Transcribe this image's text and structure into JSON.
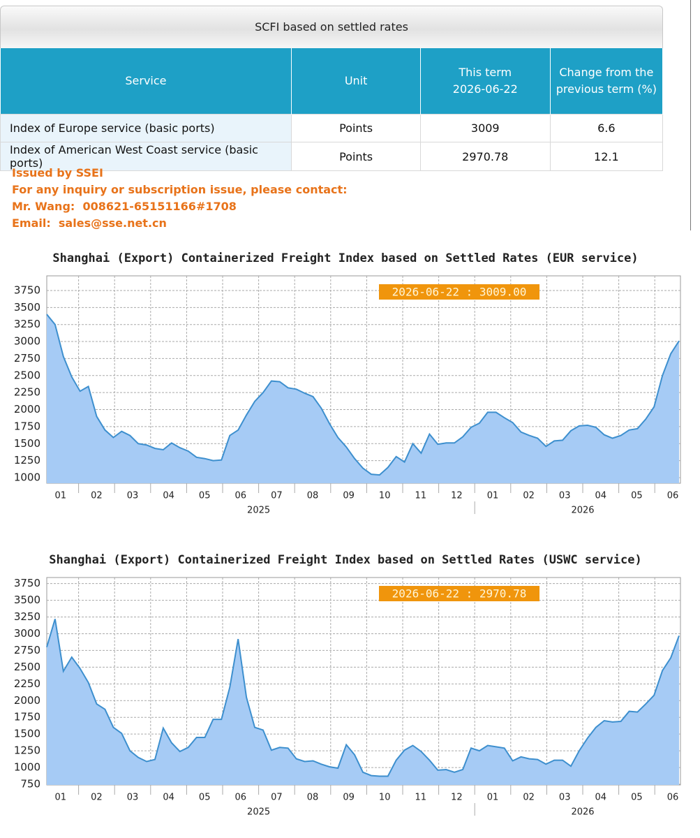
{
  "table": {
    "caption": "SCFI based on settled rates",
    "header": [
      [
        "Service"
      ],
      [
        "Unit"
      ],
      [
        "This term",
        "2026-06-22"
      ],
      [
        "Change from the",
        "previous term (%)"
      ]
    ],
    "rows": [
      [
        "Index of Europe service (basic ports)",
        "Points",
        3009,
        6.6
      ],
      [
        "Index of American West Coast service (basic ports)",
        "Points",
        2970.78,
        12.1
      ]
    ]
  },
  "contact": [
    "Issued by SSEI",
    "For any inquiry or subscription issue, please contact:",
    "Mr. Wang:  008621-65151166#1708",
    "Email:  sales@sse.net.cn"
  ],
  "chart_data": [
    {
      "type": "area",
      "title": "Shanghai (Export) Containerized Freight Index based on Settled Rates (EUR service)",
      "annotation": "2026-06-22 : 3009.00",
      "months": [
        "01",
        "02",
        "03",
        "04",
        "05",
        "06",
        "07",
        "08",
        "09",
        "10",
        "11",
        "12",
        "01",
        "02",
        "03",
        "04",
        "05",
        "06"
      ],
      "years": [
        "2025",
        "2026"
      ],
      "color": "#a6cbf5",
      "line_color": "#3d8fce",
      "grid": true,
      "ylim": [
        918,
        3965
      ],
      "yticks": [
        1000,
        1250,
        1500,
        1750,
        2000,
        2250,
        2500,
        2750,
        3000,
        3250,
        3500,
        3750
      ],
      "values": [
        3400,
        3250,
        2780,
        2480,
        2270,
        2340,
        1900,
        1700,
        1590,
        1680,
        1620,
        1500,
        1480,
        1430,
        1410,
        1510,
        1440,
        1390,
        1300,
        1280,
        1250,
        1260,
        1620,
        1700,
        1920,
        2120,
        2250,
        2420,
        2410,
        2320,
        2300,
        2240,
        2190,
        2020,
        1790,
        1590,
        1450,
        1280,
        1140,
        1050,
        1040,
        1150,
        1310,
        1230,
        1500,
        1360,
        1640,
        1490,
        1510,
        1510,
        1600,
        1740,
        1800,
        1960,
        1960,
        1880,
        1810,
        1670,
        1620,
        1580,
        1460,
        1540,
        1550,
        1690,
        1760,
        1770,
        1740,
        1630,
        1580,
        1620,
        1700,
        1720,
        1860,
        2040,
        2500,
        2820,
        3009
      ]
    },
    {
      "type": "area",
      "title": "Shanghai (Export) Containerized Freight Index based on Settled Rates (USWC service)",
      "annotation": "2026-06-22 : 2970.78",
      "months": [
        "01",
        "02",
        "03",
        "04",
        "05",
        "06",
        "07",
        "08",
        "09",
        "10",
        "11",
        "12",
        "01",
        "02",
        "03",
        "04",
        "05",
        "06"
      ],
      "years": [
        "2025",
        "2026"
      ],
      "color": "#a6cbf5",
      "line_color": "#3d8fce",
      "grid": true,
      "ylim": [
        740,
        3840
      ],
      "yticks": [
        750,
        1000,
        1250,
        1500,
        1750,
        2000,
        2250,
        2500,
        2750,
        3000,
        3250,
        3500,
        3750
      ],
      "values": [
        2800,
        3220,
        2440,
        2650,
        2480,
        2270,
        1950,
        1870,
        1600,
        1510,
        1250,
        1150,
        1090,
        1120,
        1590,
        1370,
        1240,
        1300,
        1450,
        1450,
        1720,
        1720,
        2200,
        2920,
        2050,
        1600,
        1560,
        1260,
        1300,
        1290,
        1130,
        1090,
        1100,
        1050,
        1010,
        990,
        1340,
        1190,
        930,
        880,
        870,
        870,
        1110,
        1260,
        1330,
        1240,
        1110,
        960,
        970,
        930,
        970,
        1290,
        1250,
        1330,
        1310,
        1290,
        1100,
        1160,
        1130,
        1120,
        1050,
        1110,
        1110,
        1020,
        1250,
        1440,
        1600,
        1700,
        1680,
        1690,
        1840,
        1830,
        1950,
        2080,
        2450,
        2640,
        2970.78
      ]
    }
  ]
}
